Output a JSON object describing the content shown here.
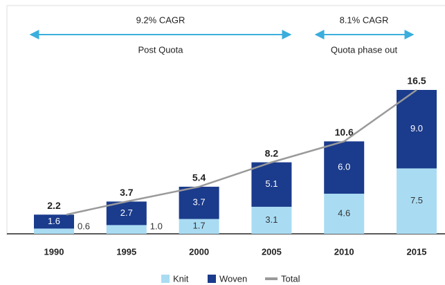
{
  "chart_data": {
    "type": "stacked_bar_line",
    "annotations": [
      "9.2% CAGR",
      "Post Quota",
      "8.1% CAGR",
      "Quota phase out"
    ],
    "categories": [
      "1990",
      "1995",
      "2000",
      "2005",
      "2010",
      "2015"
    ],
    "series": [
      {
        "name": "Knit",
        "color": "#a9dcf3",
        "values": [
          0.6,
          1.0,
          1.7,
          3.1,
          4.6,
          7.5
        ],
        "value_labels": [
          "0.6",
          "1.0",
          "1.7",
          "3.1",
          "4.6",
          "7.5"
        ]
      },
      {
        "name": "Woven",
        "color": "#1b3b8c",
        "values": [
          1.6,
          2.7,
          3.7,
          5.1,
          6.0,
          9.0
        ],
        "value_labels": [
          "1.6",
          "2.7",
          "3.7",
          "5.1",
          "6.0",
          "9.0"
        ]
      },
      {
        "name": "Total",
        "color": "#9a9a9a",
        "values": [
          2.2,
          3.7,
          5.4,
          8.2,
          10.6,
          16.5
        ],
        "value_labels": [
          "2.2",
          "3.7",
          "5.4",
          "8.2",
          "10.6",
          "16.5"
        ]
      }
    ]
  }
}
